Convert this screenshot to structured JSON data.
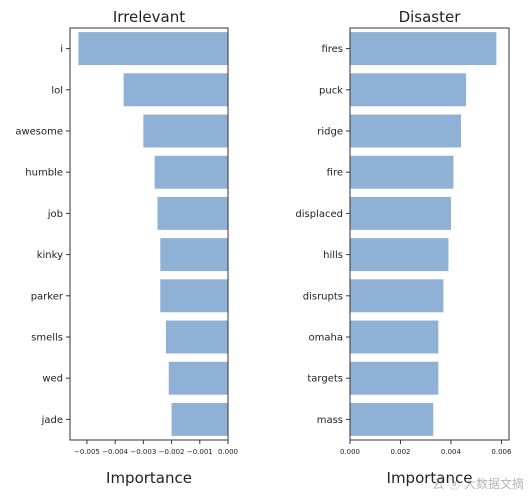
{
  "chart_data": [
    {
      "type": "bar",
      "orientation": "horizontal",
      "title": "Irrelevant",
      "xlabel": "Importance",
      "ylabel": "",
      "categories": [
        "i",
        "lol",
        "awesome",
        "humble",
        "job",
        "kinky",
        "parker",
        "smells",
        "wed",
        "jade"
      ],
      "values": [
        -0.0053,
        -0.0037,
        -0.003,
        -0.0026,
        -0.0025,
        -0.0024,
        -0.0024,
        -0.0022,
        -0.0021,
        -0.002
      ],
      "xlim": [
        -0.0056,
        0.0
      ],
      "xticks": [
        -0.005,
        -0.004,
        -0.003,
        -0.002,
        -0.001,
        0.0
      ],
      "xtick_labels": [
        "−0.005",
        "−0.004",
        "−0.003",
        "−0.002",
        "−0.001",
        "0.000"
      ],
      "color": "#8fb1d6"
    },
    {
      "type": "bar",
      "orientation": "horizontal",
      "title": "Disaster",
      "xlabel": "Importance",
      "ylabel": "",
      "categories": [
        "fires",
        "puck",
        "ridge",
        "fire",
        "displaced",
        "hills",
        "disrupts",
        "omaha",
        "targets",
        "mass"
      ],
      "values": [
        0.0058,
        0.0046,
        0.0044,
        0.0041,
        0.004,
        0.0039,
        0.0037,
        0.0035,
        0.0035,
        0.0033
      ],
      "xlim": [
        0.0,
        0.0063
      ],
      "xticks": [
        0.0,
        0.002,
        0.004,
        0.006
      ],
      "xtick_labels": [
        "0.000",
        "0.002",
        "0.004",
        "0.006"
      ],
      "color": "#8fb1d6"
    }
  ],
  "watermark": "云 ⓐ 大数据文摘"
}
